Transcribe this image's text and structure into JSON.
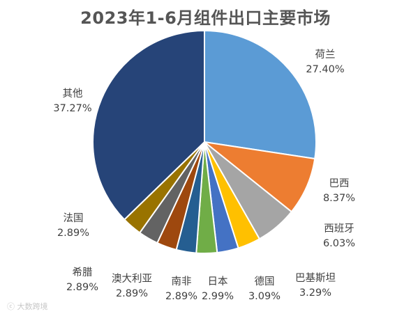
{
  "chart_data": {
    "type": "pie",
    "title": "2023年1-6月组件出口主要市场",
    "start_angle_deg": 0,
    "direction": "clockwise",
    "slices": [
      {
        "label": "荷兰",
        "value": 27.4,
        "display": "27.40%",
        "color": "#5B9BD5"
      },
      {
        "label": "巴西",
        "value": 8.37,
        "display": "8.37%",
        "color": "#ED7D31"
      },
      {
        "label": "西班牙",
        "value": 6.03,
        "display": "6.03%",
        "color": "#A5A5A5"
      },
      {
        "label": "巴基斯坦",
        "value": 3.29,
        "display": "3.29%",
        "color": "#FFC000"
      },
      {
        "label": "德国",
        "value": 3.09,
        "display": "3.09%",
        "color": "#4472C4"
      },
      {
        "label": "日本",
        "value": 2.99,
        "display": "2.99%",
        "color": "#70AD47"
      },
      {
        "label": "南非",
        "value": 2.89,
        "display": "2.89%",
        "color": "#255E91"
      },
      {
        "label": "澳大利亚",
        "value": 2.89,
        "display": "2.89%",
        "color": "#9E480E"
      },
      {
        "label": "希腊",
        "value": 2.89,
        "display": "2.89%",
        "color": "#636363"
      },
      {
        "label": "法国",
        "value": 2.89,
        "display": "2.89%",
        "color": "#997300"
      },
      {
        "label": "其他",
        "value": 37.27,
        "display": "37.27%",
        "color": "#264478"
      }
    ]
  },
  "watermark": "大数跨境"
}
